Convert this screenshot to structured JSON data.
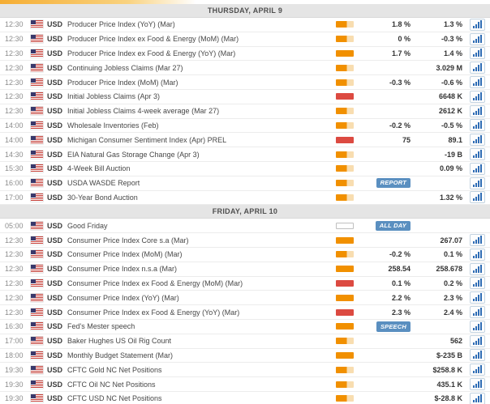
{
  "colors": {
    "impact-medium-fill": "#f19000",
    "impact-medium-rest": "#f8ddb0",
    "impact-high": "#dc4a41",
    "badge-bg": "#5a8fc0",
    "chart-icon-blue": "#2f6db5",
    "header-bg": "#e5e5e5",
    "top-strip-orange": "#f5ad33"
  },
  "calendar": {
    "days": [
      {
        "date_label": "THURSDAY, APRIL 9",
        "events": [
          {
            "time": "12:30",
            "currency": "USD",
            "name": "Producer Price Index (YoY) (Mar)",
            "impact": "medium",
            "consensus": "1.8 %",
            "previous": "1.3 %",
            "badge": null,
            "has_chart": true
          },
          {
            "time": "12:30",
            "currency": "USD",
            "name": "Producer Price Index ex Food & Energy (MoM) (Mar)",
            "impact": "medium",
            "consensus": "0 %",
            "previous": "-0.3 %",
            "badge": null,
            "has_chart": true
          },
          {
            "time": "12:30",
            "currency": "USD",
            "name": "Producer Price Index ex Food & Energy (YoY) (Mar)",
            "impact": "high_orange",
            "consensus": "1.7 %",
            "previous": "1.4 %",
            "badge": null,
            "has_chart": true
          },
          {
            "time": "12:30",
            "currency": "USD",
            "name": "Continuing Jobless Claims (Mar 27)",
            "impact": "medium",
            "consensus": "",
            "previous": "3.029 M",
            "badge": null,
            "has_chart": true
          },
          {
            "time": "12:30",
            "currency": "USD",
            "name": "Producer Price Index (MoM) (Mar)",
            "impact": "medium",
            "consensus": "-0.3 %",
            "previous": "-0.6 %",
            "badge": null,
            "has_chart": true
          },
          {
            "time": "12:30",
            "currency": "USD",
            "name": "Initial Jobless Claims (Apr 3)",
            "impact": "high",
            "consensus": "",
            "previous": "6648 K",
            "badge": null,
            "has_chart": true
          },
          {
            "time": "12:30",
            "currency": "USD",
            "name": "Initial Jobless Claims 4-week average (Mar 27)",
            "impact": "medium",
            "consensus": "",
            "previous": "2612 K",
            "badge": null,
            "has_chart": true
          },
          {
            "time": "14:00",
            "currency": "USD",
            "name": "Wholesale Inventories (Feb)",
            "impact": "medium",
            "consensus": "-0.2 %",
            "previous": "-0.5 %",
            "badge": null,
            "has_chart": true
          },
          {
            "time": "14:00",
            "currency": "USD",
            "name": "Michigan Consumer Sentiment Index (Apr) PREL",
            "impact": "high",
            "consensus": "75",
            "previous": "89.1",
            "badge": null,
            "has_chart": true
          },
          {
            "time": "14:30",
            "currency": "USD",
            "name": "EIA Natural Gas Storage Change (Apr 3)",
            "impact": "medium",
            "consensus": "",
            "previous": "-19 B",
            "badge": null,
            "has_chart": true
          },
          {
            "time": "15:30",
            "currency": "USD",
            "name": "4-Week Bill Auction",
            "impact": "medium",
            "consensus": "",
            "previous": "0.09 %",
            "badge": null,
            "has_chart": true
          },
          {
            "time": "16:00",
            "currency": "USD",
            "name": "USDA WASDE Report",
            "impact": "medium",
            "consensus": "",
            "previous": "",
            "badge": "REPORT",
            "has_chart": true
          },
          {
            "time": "17:00",
            "currency": "USD",
            "name": "30-Year Bond Auction",
            "impact": "medium",
            "consensus": "",
            "previous": "1.32 %",
            "badge": null,
            "has_chart": true
          }
        ]
      },
      {
        "date_label": "FRIDAY, APRIL 10",
        "events": [
          {
            "time": "05:00",
            "currency": "USD",
            "name": "Good Friday",
            "impact": "none",
            "consensus": "",
            "previous": "",
            "badge": "ALL DAY",
            "has_chart": false
          },
          {
            "time": "12:30",
            "currency": "USD",
            "name": "Consumer Price Index Core s.a (Mar)",
            "impact": "high_orange",
            "consensus": "",
            "previous": "267.07",
            "badge": null,
            "has_chart": true
          },
          {
            "time": "12:30",
            "currency": "USD",
            "name": "Consumer Price Index (MoM) (Mar)",
            "impact": "medium",
            "consensus": "-0.2 %",
            "previous": "0.1 %",
            "badge": null,
            "has_chart": true
          },
          {
            "time": "12:30",
            "currency": "USD",
            "name": "Consumer Price Index n.s.a (Mar)",
            "impact": "high_orange",
            "consensus": "258.54",
            "previous": "258.678",
            "badge": null,
            "has_chart": true
          },
          {
            "time": "12:30",
            "currency": "USD",
            "name": "Consumer Price Index ex Food & Energy (MoM) (Mar)",
            "impact": "high",
            "consensus": "0.1 %",
            "previous": "0.2 %",
            "badge": null,
            "has_chart": true
          },
          {
            "time": "12:30",
            "currency": "USD",
            "name": "Consumer Price Index (YoY) (Mar)",
            "impact": "high_orange",
            "consensus": "2.2 %",
            "previous": "2.3 %",
            "badge": null,
            "has_chart": true
          },
          {
            "time": "12:30",
            "currency": "USD",
            "name": "Consumer Price Index ex Food & Energy (YoY) (Mar)",
            "impact": "high",
            "consensus": "2.3 %",
            "previous": "2.4 %",
            "badge": null,
            "has_chart": true
          },
          {
            "time": "16:30",
            "currency": "USD",
            "name": "Fed's Mester speech",
            "impact": "high_orange",
            "consensus": "",
            "previous": "",
            "badge": "SPEECH",
            "has_chart": true
          },
          {
            "time": "17:00",
            "currency": "USD",
            "name": "Baker Hughes US Oil Rig Count",
            "impact": "medium",
            "consensus": "",
            "previous": "562",
            "badge": null,
            "has_chart": true
          },
          {
            "time": "18:00",
            "currency": "USD",
            "name": "Monthly Budget Statement (Mar)",
            "impact": "high_orange",
            "consensus": "",
            "previous": "$-235 B",
            "badge": null,
            "has_chart": true
          },
          {
            "time": "19:30",
            "currency": "USD",
            "name": "CFTC Gold NC Net Positions",
            "impact": "medium",
            "consensus": "",
            "previous": "$258.8 K",
            "badge": null,
            "has_chart": true
          },
          {
            "time": "19:30",
            "currency": "USD",
            "name": "CFTC Oil NC Net Positions",
            "impact": "medium",
            "consensus": "",
            "previous": "435.1 K",
            "badge": null,
            "has_chart": true
          },
          {
            "time": "19:30",
            "currency": "USD",
            "name": "CFTC USD NC Net Positions",
            "impact": "medium",
            "consensus": "",
            "previous": "$-28.8 K",
            "badge": null,
            "has_chart": true
          }
        ]
      }
    ]
  }
}
